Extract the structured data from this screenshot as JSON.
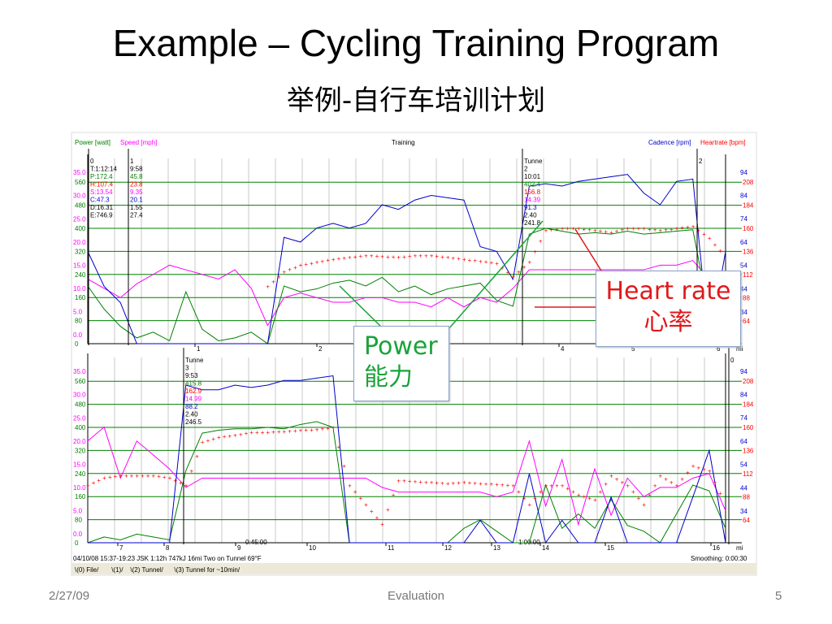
{
  "slide": {
    "title": "Example – Cycling Training Program",
    "subtitle": "举例-自行车培训计划",
    "footer_date": "2/27/09",
    "footer_center": "Evaluation",
    "page_number": "5"
  },
  "callouts": {
    "power_en": "Power",
    "power_zh": "能力",
    "hr_en": "Heart rate",
    "hr_zh": "心率"
  },
  "colors": {
    "power": "#008000",
    "speed": "#ff00ff",
    "cadence": "#0000cc",
    "heartrate": "#ff0000",
    "grid_h": "#008000",
    "grid_v": "#c8c8c8"
  },
  "chart_data": {
    "type": "line",
    "title": "Training",
    "legend": {
      "power": "Power [watt]",
      "speed": "Speed [mph]",
      "cadence": "Cadence [rpm]",
      "heartrate": "Heartrate [bpm]"
    },
    "left_speed_ticks": [
      "35.0",
      "30.0",
      "25.0",
      "20.0",
      "15.0",
      "10.0",
      "5.0",
      "0.0"
    ],
    "left_power_ticks": [
      "560",
      "480",
      "400",
      "320",
      "240",
      "160",
      "80",
      "0"
    ],
    "right_cadence_ticks": [
      "94",
      "84",
      "74",
      "64",
      "54",
      "44",
      "34"
    ],
    "right_hr_ticks": [
      "208",
      "184",
      "160",
      "136",
      "112",
      "88",
      "64"
    ],
    "ylim_power": [
      0,
      560
    ],
    "ylim_speed": [
      0,
      35
    ],
    "ylim_cadence": [
      34,
      94
    ],
    "ylim_heartrate": [
      64,
      208
    ],
    "upper": {
      "xlabel": "mi",
      "x_ticks": [
        "1",
        "2",
        "3",
        "4",
        "5",
        "6"
      ],
      "x_range_mi": [
        0,
        6.3
      ],
      "markers": [
        {
          "lines": [
            "0",
            "T:1:12:14",
            "P:172.4",
            "H:107.4",
            "S:13.54",
            "C:47.3",
            "D:16.31",
            "E:746.9"
          ]
        },
        {
          "lines": [
            "1",
            "9:58",
            "45.8",
            "23.8",
            "9.35",
            "20.1",
            "1.55",
            "27.4"
          ]
        },
        {
          "lines": [
            "Tunne",
            "2",
            "10:01",
            "402.4",
            "156.8",
            "14.39",
            "91.3",
            "2.40",
            "241.8"
          ]
        },
        {
          "lines": [
            "2"
          ]
        }
      ],
      "series": [
        {
          "name": "cadence",
          "values": [
            60,
            45,
            38,
            0,
            0,
            0,
            0,
            0,
            0,
            0,
            0,
            0,
            66,
            64,
            70,
            72,
            70,
            72,
            80,
            78,
            82,
            84,
            83,
            82,
            62,
            60,
            48,
            88,
            89,
            88,
            90,
            91,
            92,
            93,
            85,
            80,
            90,
            91,
            0,
            60
          ]
        },
        {
          "name": "heartrate",
          "values": [
            null,
            null,
            null,
            null,
            null,
            null,
            null,
            null,
            null,
            null,
            null,
            100,
            115,
            122,
            125,
            128,
            130,
            132,
            131,
            130,
            132,
            132,
            130,
            128,
            126,
            124,
            110,
            125,
            158,
            160,
            160,
            158,
            156,
            160,
            160,
            158,
            160,
            162,
            150,
            130
          ]
        },
        {
          "name": "power",
          "values": [
            200,
            120,
            60,
            20,
            40,
            10,
            180,
            50,
            10,
            20,
            40,
            0,
            200,
            180,
            190,
            210,
            220,
            200,
            230,
            180,
            200,
            170,
            190,
            200,
            210,
            150,
            130,
            380,
            400,
            390,
            380,
            385,
            380,
            390,
            380,
            385,
            390,
            395,
            100,
            40
          ]
        },
        {
          "name": "speed",
          "values": [
            12,
            10,
            8,
            11,
            13,
            15,
            14,
            13,
            12,
            14,
            10,
            2,
            8,
            9,
            8,
            7,
            7,
            8,
            8,
            7,
            7,
            6,
            8,
            6,
            8,
            7,
            10,
            14,
            14,
            14,
            14,
            14,
            14,
            14,
            14,
            15,
            15,
            16,
            12,
            10
          ]
        }
      ]
    },
    "lower": {
      "xlabel": "mi",
      "x_ticks": [
        "7",
        "8",
        "9",
        "10",
        "11",
        "12",
        "13",
        "14",
        "15",
        "16"
      ],
      "x_range_mi": [
        6.3,
        16.5
      ],
      "time_labels": [
        "0:45:00",
        "1:00:00"
      ],
      "markers": [
        {
          "lines": [
            "Tunne",
            "3",
            "9:53",
            "415.8",
            "162.9",
            "14.99",
            "88.2",
            "2.40",
            "246.5"
          ]
        },
        {
          "lines": [
            "0"
          ]
        }
      ],
      "series": [
        {
          "name": "cadence",
          "values": [
            0,
            0,
            0,
            10,
            0,
            0,
            88,
            86,
            86,
            88,
            87,
            88,
            90,
            90,
            91,
            92,
            0,
            0,
            0,
            0,
            0,
            20,
            0,
            0,
            30,
            0,
            0,
            50,
            0,
            30,
            0,
            0,
            40,
            0,
            20,
            0,
            0,
            40,
            60,
            0
          ]
        },
        {
          "name": "heartrate",
          "values": [
            100,
            108,
            110,
            110,
            110,
            108,
            100,
            145,
            150,
            152,
            155,
            155,
            156,
            157,
            158,
            160,
            100,
            80,
            60,
            105,
            104,
            103,
            102,
            103,
            102,
            101,
            100,
            80,
            100,
            100,
            90,
            85,
            110,
            100,
            80,
            110,
            100,
            120,
            115,
            80
          ]
        },
        {
          "name": "power",
          "values": [
            0,
            20,
            10,
            30,
            20,
            10,
            250,
            380,
            390,
            395,
            395,
            400,
            395,
            410,
            420,
            400,
            0,
            0,
            0,
            0,
            0,
            0,
            0,
            50,
            80,
            40,
            0,
            0,
            200,
            50,
            100,
            50,
            150,
            60,
            40,
            0,
            100,
            200,
            180,
            50
          ]
        },
        {
          "name": "speed",
          "values": [
            20,
            23,
            12,
            20,
            17,
            14,
            10,
            12,
            12,
            12,
            12,
            12,
            12,
            12,
            12,
            12,
            12,
            12,
            10,
            9,
            9,
            9,
            9,
            9,
            9,
            8,
            9,
            20,
            6,
            16,
            2,
            14,
            4,
            12,
            8,
            10,
            10,
            12,
            13,
            5
          ]
        }
      ]
    },
    "status_line": "04/10/08 15:37-19:23 JSK 1:12h 747kJ 16mi Two on Tunnel 69°F",
    "smoothing": "Smoothing: 0:00:30",
    "tabs": [
      "(0) File",
      "(1)",
      "(2) Tunnel",
      "(3) Tunnel for ~10min"
    ]
  }
}
